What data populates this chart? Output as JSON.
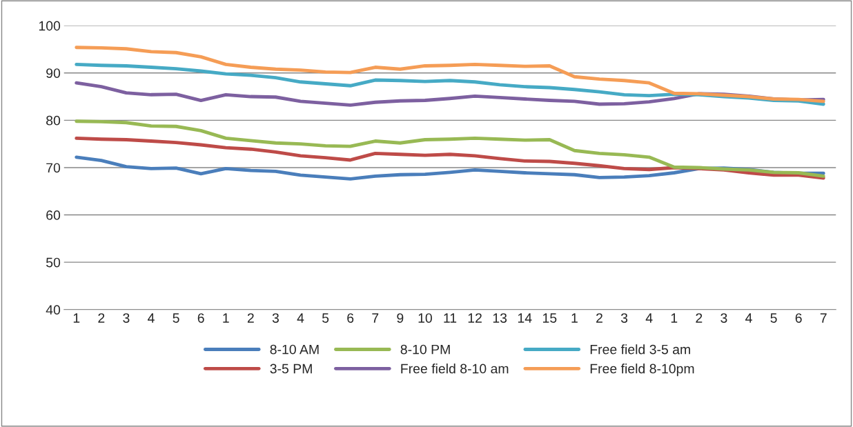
{
  "chart_data": {
    "type": "line",
    "categories": [
      "1",
      "2",
      "3",
      "4",
      "5",
      "6",
      "1",
      "2",
      "3",
      "4",
      "5",
      "6",
      "7",
      "9",
      "10",
      "11",
      "12",
      "13",
      "14",
      "15",
      "1",
      "2",
      "3",
      "4",
      "1",
      "2",
      "3",
      "4",
      "5",
      "6",
      "7"
    ],
    "series": [
      {
        "name": "8-10 AM",
        "color": "#4a7ebb",
        "values": [
          72.2,
          71.5,
          70.2,
          69.8,
          69.9,
          68.7,
          69.8,
          69.4,
          69.2,
          68.4,
          68.0,
          67.6,
          68.2,
          68.5,
          68.6,
          69.0,
          69.5,
          69.2,
          68.9,
          68.7,
          68.5,
          67.9,
          68.0,
          68.3,
          68.9,
          69.8,
          69.9,
          69.6,
          69.0,
          68.8,
          68.8
        ]
      },
      {
        "name": "3-5 PM",
        "color": "#be4b48",
        "values": [
          76.2,
          76.0,
          75.9,
          75.6,
          75.3,
          74.8,
          74.2,
          73.9,
          73.3,
          72.5,
          72.1,
          71.6,
          73.0,
          72.8,
          72.6,
          72.8,
          72.5,
          71.9,
          71.4,
          71.3,
          70.9,
          70.4,
          69.8,
          69.6,
          70.0,
          69.8,
          69.5,
          68.9,
          68.4,
          68.4,
          67.8
        ]
      },
      {
        "name": "8-10 PM",
        "color": "#98b954",
        "values": [
          79.8,
          79.7,
          79.5,
          78.8,
          78.7,
          77.8,
          76.2,
          75.7,
          75.2,
          75.0,
          74.6,
          74.5,
          75.6,
          75.2,
          75.9,
          76.0,
          76.2,
          76.0,
          75.8,
          75.9,
          73.6,
          73.0,
          72.7,
          72.2,
          70.1,
          70.0,
          69.7,
          69.5,
          69.0,
          68.9,
          68.2
        ]
      },
      {
        "name": "Free field 8-10 am",
        "color": "#7d60a0",
        "values": [
          87.9,
          87.1,
          85.8,
          85.4,
          85.5,
          84.2,
          85.4,
          85.0,
          84.9,
          84.0,
          83.6,
          83.2,
          83.8,
          84.1,
          84.2,
          84.6,
          85.1,
          84.8,
          84.5,
          84.2,
          84.0,
          83.4,
          83.5,
          83.9,
          84.6,
          85.6,
          85.5,
          85.1,
          84.5,
          84.3,
          84.4
        ]
      },
      {
        "name": "Free field 3-5 am",
        "color": "#46aac5",
        "values": [
          91.8,
          91.6,
          91.5,
          91.2,
          90.9,
          90.4,
          89.8,
          89.5,
          89.0,
          88.1,
          87.7,
          87.3,
          88.5,
          88.4,
          88.2,
          88.4,
          88.1,
          87.5,
          87.1,
          86.9,
          86.5,
          86.0,
          85.4,
          85.2,
          85.5,
          85.4,
          85.0,
          84.7,
          84.2,
          84.1,
          83.4
        ]
      },
      {
        "name": "Free field 8-10pm",
        "color": "#f59d56",
        "values": [
          95.4,
          95.3,
          95.1,
          94.5,
          94.3,
          93.4,
          91.8,
          91.2,
          90.8,
          90.6,
          90.2,
          90.1,
          91.2,
          90.8,
          91.5,
          91.6,
          91.8,
          91.6,
          91.4,
          91.5,
          89.2,
          88.7,
          88.4,
          87.9,
          85.7,
          85.6,
          85.3,
          85.0,
          84.5,
          84.4,
          84.0
        ]
      }
    ],
    "ylim": [
      40,
      100
    ],
    "yticks": [
      40,
      50,
      60,
      70,
      80,
      90,
      100
    ],
    "grid": "y",
    "legend": "bottom",
    "marker": "none",
    "line_style": "solid"
  }
}
